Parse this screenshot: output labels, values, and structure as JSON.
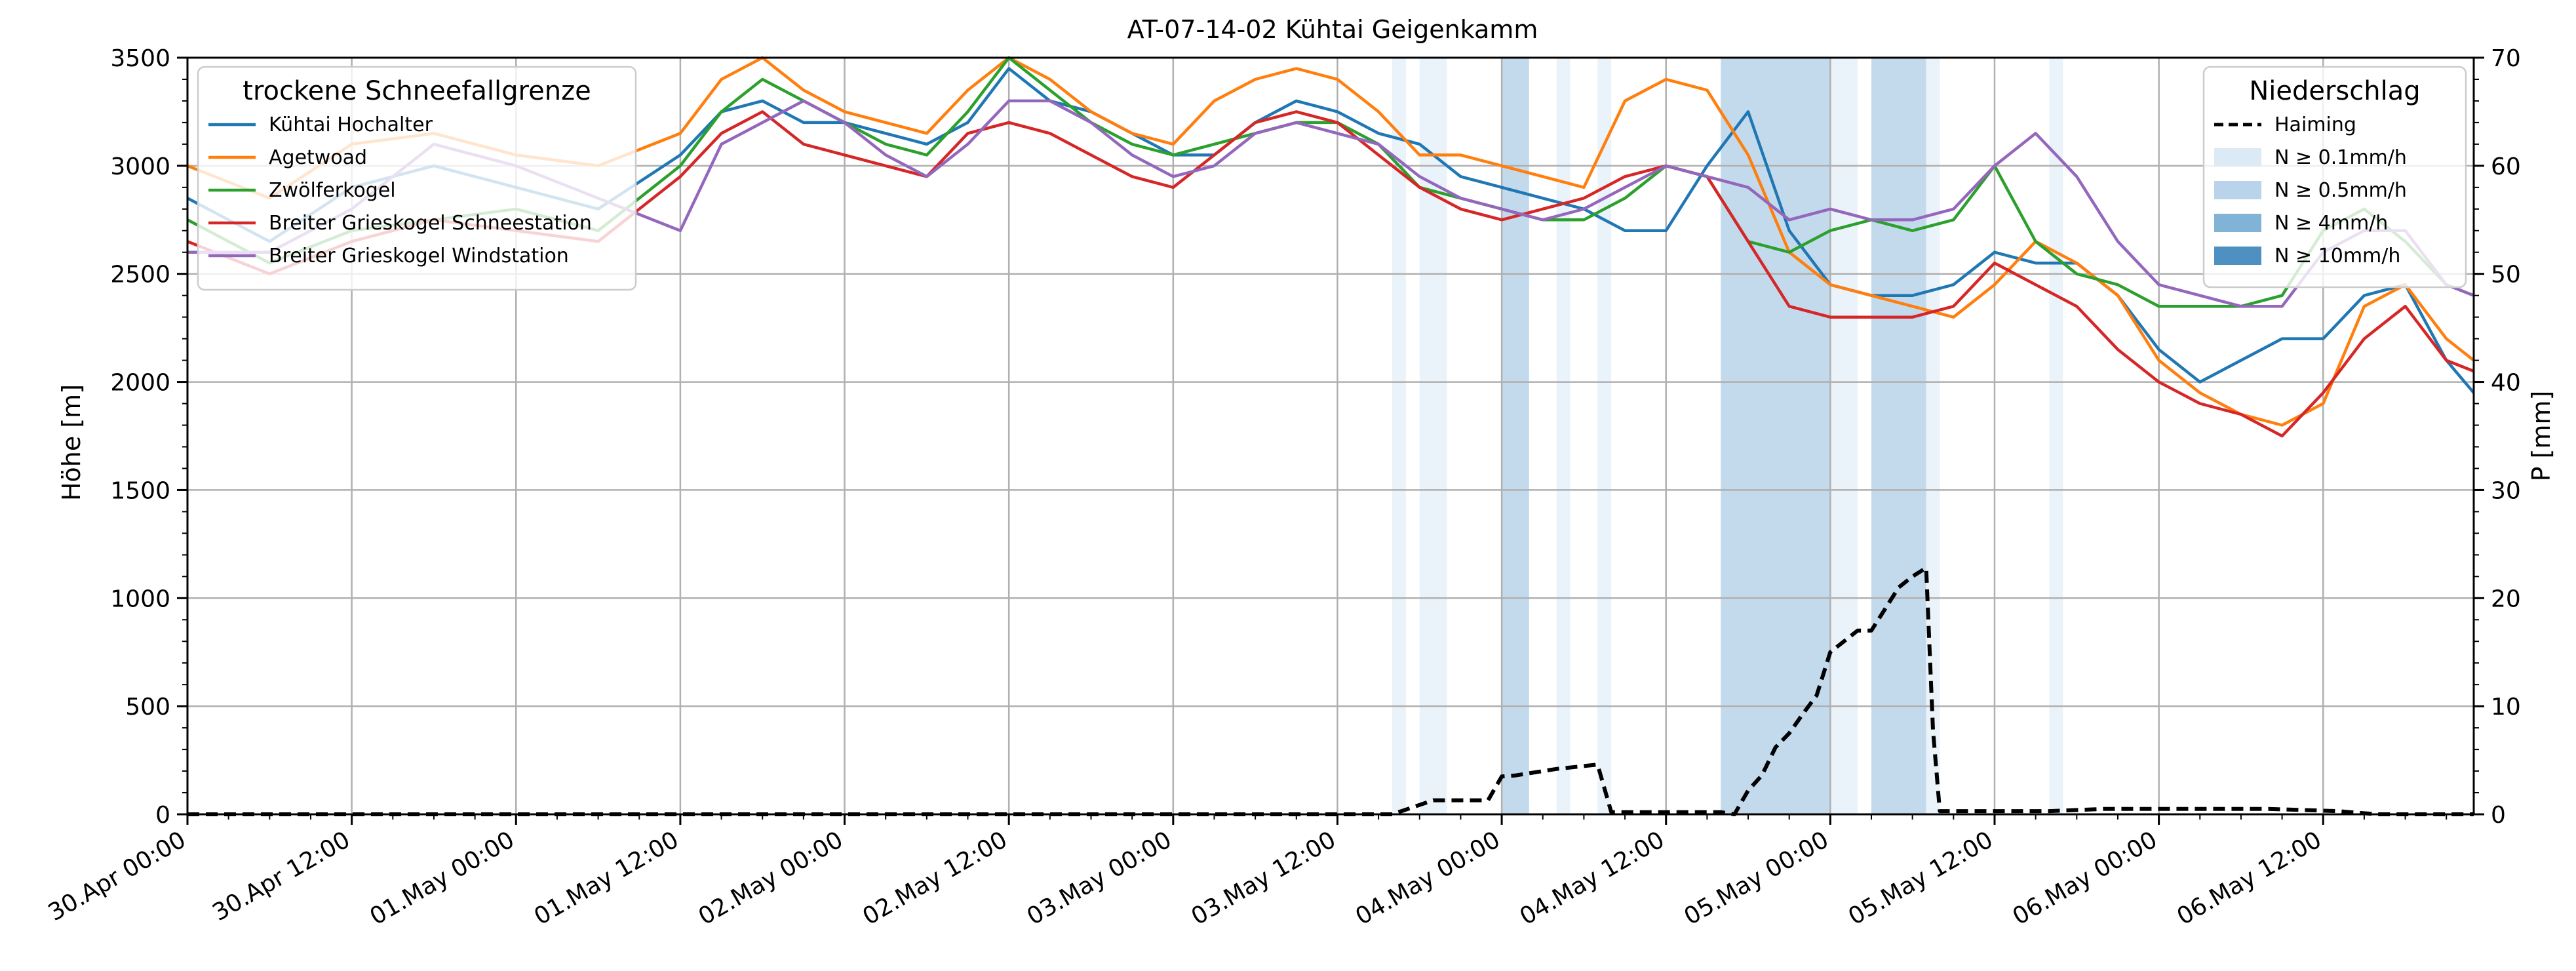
{
  "chart_data": {
    "type": "line",
    "title": "AT-07-14-02 Kühtai Geigenkamm",
    "ylabel": "Höhe [m]",
    "y2label": "P [mm]",
    "ylim": [
      0,
      3500
    ],
    "y2lim": [
      0,
      70
    ],
    "yticks": [
      "0",
      "500",
      "1000",
      "1500",
      "2000",
      "2500",
      "3000",
      "3500"
    ],
    "y2ticks": [
      "0",
      "10",
      "20",
      "30",
      "40",
      "50",
      "60",
      "70"
    ],
    "x_unit": "hours since first tick",
    "xlim": [
      0,
      167
    ],
    "xticks": [
      "30.Apr 00:00",
      "30.Apr 12:00",
      "01.May 00:00",
      "01.May 12:00",
      "02.May 00:00",
      "02.May 12:00",
      "03.May 00:00",
      "03.May 12:00",
      "04.May 00:00",
      "04.May 12:00",
      "05.May 00:00",
      "05.May 12:00",
      "06.May 00:00",
      "06.May 12:00"
    ],
    "grid": true,
    "legend_left": {
      "title": "trockene Schneefallgrenze",
      "placement": "top-left"
    },
    "legend_right": {
      "title": "Niederschlag",
      "placement": "top-right"
    },
    "series": [
      {
        "name": "Kühtai Hochalter",
        "color": "#1f77b4",
        "x": [
          0,
          6,
          12,
          18,
          24,
          30,
          36,
          39,
          42,
          45,
          48,
          51,
          54,
          57,
          60,
          63,
          66,
          69,
          72,
          75,
          78,
          81,
          84,
          87,
          90,
          93,
          96,
          99,
          102,
          105,
          108,
          111,
          114,
          117,
          120,
          123,
          126,
          129,
          132,
          135,
          138,
          141,
          144,
          147,
          150,
          153,
          156,
          159,
          162,
          165,
          167
        ],
        "y": [
          2850,
          2650,
          2900,
          3000,
          2900,
          2800,
          3050,
          3250,
          3300,
          3200,
          3200,
          3150,
          3100,
          3200,
          3450,
          3300,
          3250,
          3150,
          3050,
          3050,
          3200,
          3300,
          3250,
          3150,
          3100,
          2950,
          2900,
          2850,
          2800,
          2700,
          2700,
          3000,
          3250,
          2700,
          2450,
          2400,
          2400,
          2450,
          2600,
          2550,
          2550,
          2400,
          2150,
          2000,
          2100,
          2200,
          2200,
          2400,
          2450,
          2100,
          1950
        ]
      },
      {
        "name": "Agetwoad",
        "color": "#ff7f0e",
        "x": [
          0,
          6,
          12,
          18,
          24,
          30,
          36,
          39,
          42,
          45,
          48,
          51,
          54,
          57,
          60,
          63,
          66,
          69,
          72,
          75,
          78,
          81,
          84,
          87,
          90,
          93,
          96,
          99,
          102,
          105,
          108,
          111,
          114,
          117,
          120,
          123,
          126,
          129,
          132,
          135,
          138,
          141,
          144,
          147,
          150,
          153,
          156,
          159,
          162,
          165,
          167
        ],
        "y": [
          3000,
          2850,
          3100,
          3150,
          3050,
          3000,
          3150,
          3400,
          3500,
          3350,
          3250,
          3200,
          3150,
          3350,
          3500,
          3400,
          3250,
          3150,
          3100,
          3300,
          3400,
          3450,
          3400,
          3250,
          3050,
          3050,
          3000,
          2950,
          2900,
          3300,
          3400,
          3350,
          3050,
          2600,
          2450,
          2400,
          2350,
          2300,
          2450,
          2650,
          2550,
          2400,
          2100,
          1950,
          1850,
          1800,
          1900,
          2350,
          2450,
          2200,
          2100
        ]
      },
      {
        "name": "Zwölferkogel",
        "color": "#2ca02c",
        "x": [
          0,
          6,
          12,
          18,
          24,
          30,
          36,
          39,
          42,
          45,
          48,
          51,
          54,
          57,
          60,
          63,
          66,
          69,
          72,
          75,
          78,
          81,
          84,
          87,
          90,
          93,
          96,
          99,
          102,
          105,
          108,
          111,
          114,
          117,
          120,
          123,
          126,
          129,
          132,
          135,
          138,
          141,
          144,
          147,
          150,
          153,
          156,
          159,
          162,
          165,
          167
        ],
        "y": [
          2750,
          2550,
          2700,
          2750,
          2800,
          2700,
          3000,
          3250,
          3400,
          3300,
          3200,
          3100,
          3050,
          3250,
          3500,
          3350,
          3200,
          3100,
          3050,
          3100,
          3150,
          3200,
          3200,
          3100,
          2900,
          2850,
          2800,
          2750,
          2750,
          2850,
          3000,
          2950,
          2650,
          2600,
          2700,
          2750,
          2700,
          2750,
          3000,
          2650,
          2500,
          2450,
          2350,
          2350,
          2350,
          2400,
          2700,
          2800,
          2650,
          2450,
          2400
        ]
      },
      {
        "name": "Breiter Grieskogel Schneestation",
        "color": "#d62728",
        "x": [
          0,
          6,
          12,
          18,
          24,
          30,
          36,
          39,
          42,
          45,
          48,
          51,
          54,
          57,
          60,
          63,
          66,
          69,
          72,
          75,
          78,
          81,
          84,
          87,
          90,
          93,
          96,
          99,
          102,
          105,
          108,
          111,
          114,
          117,
          120,
          123,
          126,
          129,
          132,
          135,
          138,
          141,
          144,
          147,
          150,
          153,
          156,
          159,
          162,
          165,
          167
        ],
        "y": [
          2650,
          2500,
          2650,
          2750,
          2700,
          2650,
          2950,
          3150,
          3250,
          3100,
          3050,
          3000,
          2950,
          3150,
          3200,
          3150,
          3050,
          2950,
          2900,
          3050,
          3200,
          3250,
          3200,
          3050,
          2900,
          2800,
          2750,
          2800,
          2850,
          2950,
          3000,
          2950,
          2650,
          2350,
          2300,
          2300,
          2300,
          2350,
          2550,
          2450,
          2350,
          2150,
          2000,
          1900,
          1850,
          1750,
          1950,
          2200,
          2350,
          2100,
          2050
        ]
      },
      {
        "name": "Breiter Grieskogel Windstation",
        "color": "#9467bd",
        "x": [
          0,
          6,
          12,
          18,
          24,
          30,
          36,
          39,
          42,
          45,
          48,
          51,
          54,
          57,
          60,
          63,
          66,
          69,
          72,
          75,
          78,
          81,
          84,
          87,
          90,
          93,
          96,
          99,
          102,
          105,
          108,
          111,
          114,
          117,
          120,
          123,
          126,
          129,
          132,
          135,
          138,
          141,
          144,
          147,
          150,
          153,
          156,
          159,
          162,
          165,
          167
        ],
        "y": [
          2600,
          2600,
          2800,
          3100,
          3000,
          2850,
          2700,
          3100,
          3200,
          3300,
          3200,
          3050,
          2950,
          3100,
          3300,
          3300,
          3200,
          3050,
          2950,
          3000,
          3150,
          3200,
          3150,
          3100,
          2950,
          2850,
          2800,
          2750,
          2800,
          2900,
          3000,
          2950,
          2900,
          2750,
          2800,
          2750,
          2750,
          2800,
          3000,
          3150,
          2950,
          2650,
          2450,
          2400,
          2350,
          2350,
          2600,
          2700,
          2700,
          2450,
          2400
        ]
      },
      {
        "name": "Haiming",
        "color": "#000000",
        "axis": "right",
        "style": "dashed",
        "x": [
          0,
          88,
          91,
          92,
          95,
          96,
          97,
          100,
          103,
          104,
          104.5,
          112,
          113,
          114,
          115,
          116,
          117,
          118,
          119,
          120,
          121,
          122,
          123,
          124,
          125,
          126,
          127,
          127.5,
          128,
          132,
          136,
          140,
          145,
          150,
          152,
          157,
          160,
          167
        ],
        "y": [
          0,
          0,
          1.3,
          1.3,
          1.3,
          3.5,
          3.6,
          4.2,
          4.6,
          0.2,
          0.2,
          0.2,
          0,
          2.2,
          3.6,
          6.2,
          7.5,
          9.3,
          11,
          15,
          16,
          17,
          17,
          19,
          21,
          22,
          22.8,
          7.8,
          0.3,
          0.3,
          0.3,
          0.5,
          0.5,
          0.5,
          0.5,
          0.3,
          0,
          0
        ]
      }
    ],
    "precipitation_bands": {
      "legend": [
        "N ≥ 0.1mm/h",
        "N ≥ 0.5mm/h",
        "N ≥ 4mm/h",
        "N ≥ 10mm/h"
      ],
      "legend_colors": [
        "#dceaf6",
        "#b9d3ea",
        "#80b3d5",
        "#4e90c1"
      ],
      "bands": [
        {
          "x0": 88,
          "x1": 89,
          "level": 1
        },
        {
          "x0": 90,
          "x1": 92,
          "level": 1
        },
        {
          "x0": 96,
          "x1": 98,
          "level": 2
        },
        {
          "x0": 100,
          "x1": 101,
          "level": 1
        },
        {
          "x0": 103,
          "x1": 104,
          "level": 1
        },
        {
          "x0": 112,
          "x1": 120,
          "level": 2
        },
        {
          "x0": 120,
          "x1": 122,
          "level": 1
        },
        {
          "x0": 123,
          "x1": 127,
          "level": 2
        },
        {
          "x0": 127,
          "x1": 128,
          "level": 1
        },
        {
          "x0": 136,
          "x1": 137,
          "level": 1
        }
      ]
    }
  }
}
